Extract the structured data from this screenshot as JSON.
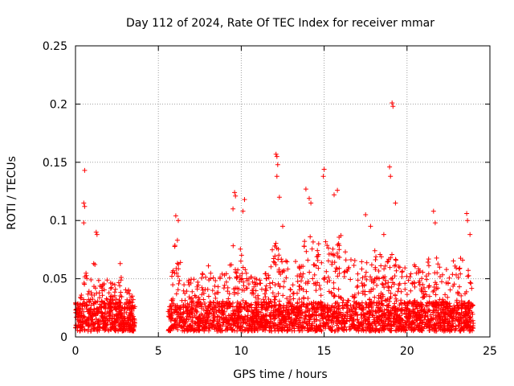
{
  "chart_data": {
    "type": "scatter",
    "title": "Day 112 of 2024, Rate Of TEC Index for receiver mmar",
    "xlabel": "GPS time / hours",
    "ylabel": "ROTI / TECUs",
    "xlim": [
      0,
      25
    ],
    "ylim": [
      0,
      0.25
    ],
    "x_ticks": [
      0,
      5,
      10,
      15,
      20,
      25
    ],
    "x_tick_labels": [
      "0",
      "5",
      "10",
      "15",
      "20",
      "25"
    ],
    "y_ticks": [
      0,
      0.05,
      0.1,
      0.15,
      0.2,
      0.25
    ],
    "y_tick_labels": [
      "0",
      "0.05",
      "0.1",
      "0.15",
      "0.2",
      "0.25"
    ],
    "grid": true,
    "marker": "+",
    "series": [
      {
        "name": "ROTI",
        "color": "#ff0000",
        "segments": [
          {
            "x_range": [
              0.0,
              3.6
            ],
            "baseline": [
              0.005,
              0.03
            ],
            "envelope": [
              [
                0.0,
                0.03
              ],
              [
                0.3,
                0.035
              ],
              [
                0.5,
                0.05
              ],
              [
                0.6,
                0.06
              ],
              [
                0.8,
                0.04
              ],
              [
                1.0,
                0.055
              ],
              [
                1.2,
                0.065
              ],
              [
                1.4,
                0.05
              ],
              [
                1.6,
                0.045
              ],
              [
                1.8,
                0.055
              ],
              [
                2.0,
                0.05
              ],
              [
                2.2,
                0.045
              ],
              [
                2.4,
                0.05
              ],
              [
                2.7,
                0.06
              ],
              [
                3.0,
                0.045
              ],
              [
                3.3,
                0.04
              ],
              [
                3.6,
                0.03
              ]
            ]
          },
          {
            "x_range": [
              5.6,
              24.0
            ],
            "baseline": [
              0.005,
              0.03
            ],
            "envelope": [
              [
                5.6,
                0.04
              ],
              [
                6.0,
                0.08
              ],
              [
                6.5,
                0.06
              ],
              [
                7.0,
                0.055
              ],
              [
                7.5,
                0.05
              ],
              [
                8.0,
                0.065
              ],
              [
                8.5,
                0.05
              ],
              [
                9.0,
                0.06
              ],
              [
                9.5,
                0.085
              ],
              [
                10.0,
                0.08
              ],
              [
                10.5,
                0.06
              ],
              [
                11.0,
                0.05
              ],
              [
                11.5,
                0.065
              ],
              [
                12.0,
                0.09
              ],
              [
                12.5,
                0.07
              ],
              [
                13.0,
                0.06
              ],
              [
                13.5,
                0.07
              ],
              [
                14.0,
                0.09
              ],
              [
                14.5,
                0.08
              ],
              [
                15.0,
                0.1
              ],
              [
                15.5,
                0.075
              ],
              [
                16.0,
                0.09
              ],
              [
                16.5,
                0.075
              ],
              [
                17.0,
                0.065
              ],
              [
                17.5,
                0.07
              ],
              [
                18.0,
                0.075
              ],
              [
                18.5,
                0.07
              ],
              [
                19.0,
                0.085
              ],
              [
                19.5,
                0.065
              ],
              [
                20.0,
                0.06
              ],
              [
                20.5,
                0.065
              ],
              [
                21.0,
                0.06
              ],
              [
                21.5,
                0.075
              ],
              [
                22.0,
                0.065
              ],
              [
                22.5,
                0.06
              ],
              [
                23.0,
                0.07
              ],
              [
                23.5,
                0.065
              ],
              [
                24.0,
                0.045
              ]
            ]
          }
        ],
        "spikes": [
          [
            0.55,
            0.143
          ],
          [
            0.5,
            0.115
          ],
          [
            0.55,
            0.112
          ],
          [
            0.5,
            0.098
          ],
          [
            1.1,
            0.063
          ],
          [
            1.25,
            0.09
          ],
          [
            1.3,
            0.088
          ],
          [
            2.7,
            0.063
          ],
          [
            6.05,
            0.104
          ],
          [
            6.2,
            0.1
          ],
          [
            6.15,
            0.083
          ],
          [
            9.6,
            0.124
          ],
          [
            9.65,
            0.121
          ],
          [
            9.5,
            0.11
          ],
          [
            10.2,
            0.118
          ],
          [
            10.1,
            0.108
          ],
          [
            12.1,
            0.157
          ],
          [
            12.15,
            0.155
          ],
          [
            12.2,
            0.148
          ],
          [
            12.15,
            0.138
          ],
          [
            12.3,
            0.12
          ],
          [
            12.5,
            0.095
          ],
          [
            13.9,
            0.127
          ],
          [
            14.1,
            0.119
          ],
          [
            14.2,
            0.115
          ],
          [
            15.0,
            0.144
          ],
          [
            14.95,
            0.138
          ],
          [
            15.8,
            0.126
          ],
          [
            15.6,
            0.122
          ],
          [
            17.5,
            0.105
          ],
          [
            17.8,
            0.095
          ],
          [
            18.6,
            0.088
          ],
          [
            18.95,
            0.146
          ],
          [
            19.0,
            0.138
          ],
          [
            19.1,
            0.201
          ],
          [
            19.15,
            0.198
          ],
          [
            19.3,
            0.115
          ],
          [
            21.6,
            0.108
          ],
          [
            21.7,
            0.098
          ],
          [
            23.6,
            0.106
          ],
          [
            23.65,
            0.1
          ],
          [
            23.8,
            0.088
          ]
        ]
      }
    ]
  }
}
